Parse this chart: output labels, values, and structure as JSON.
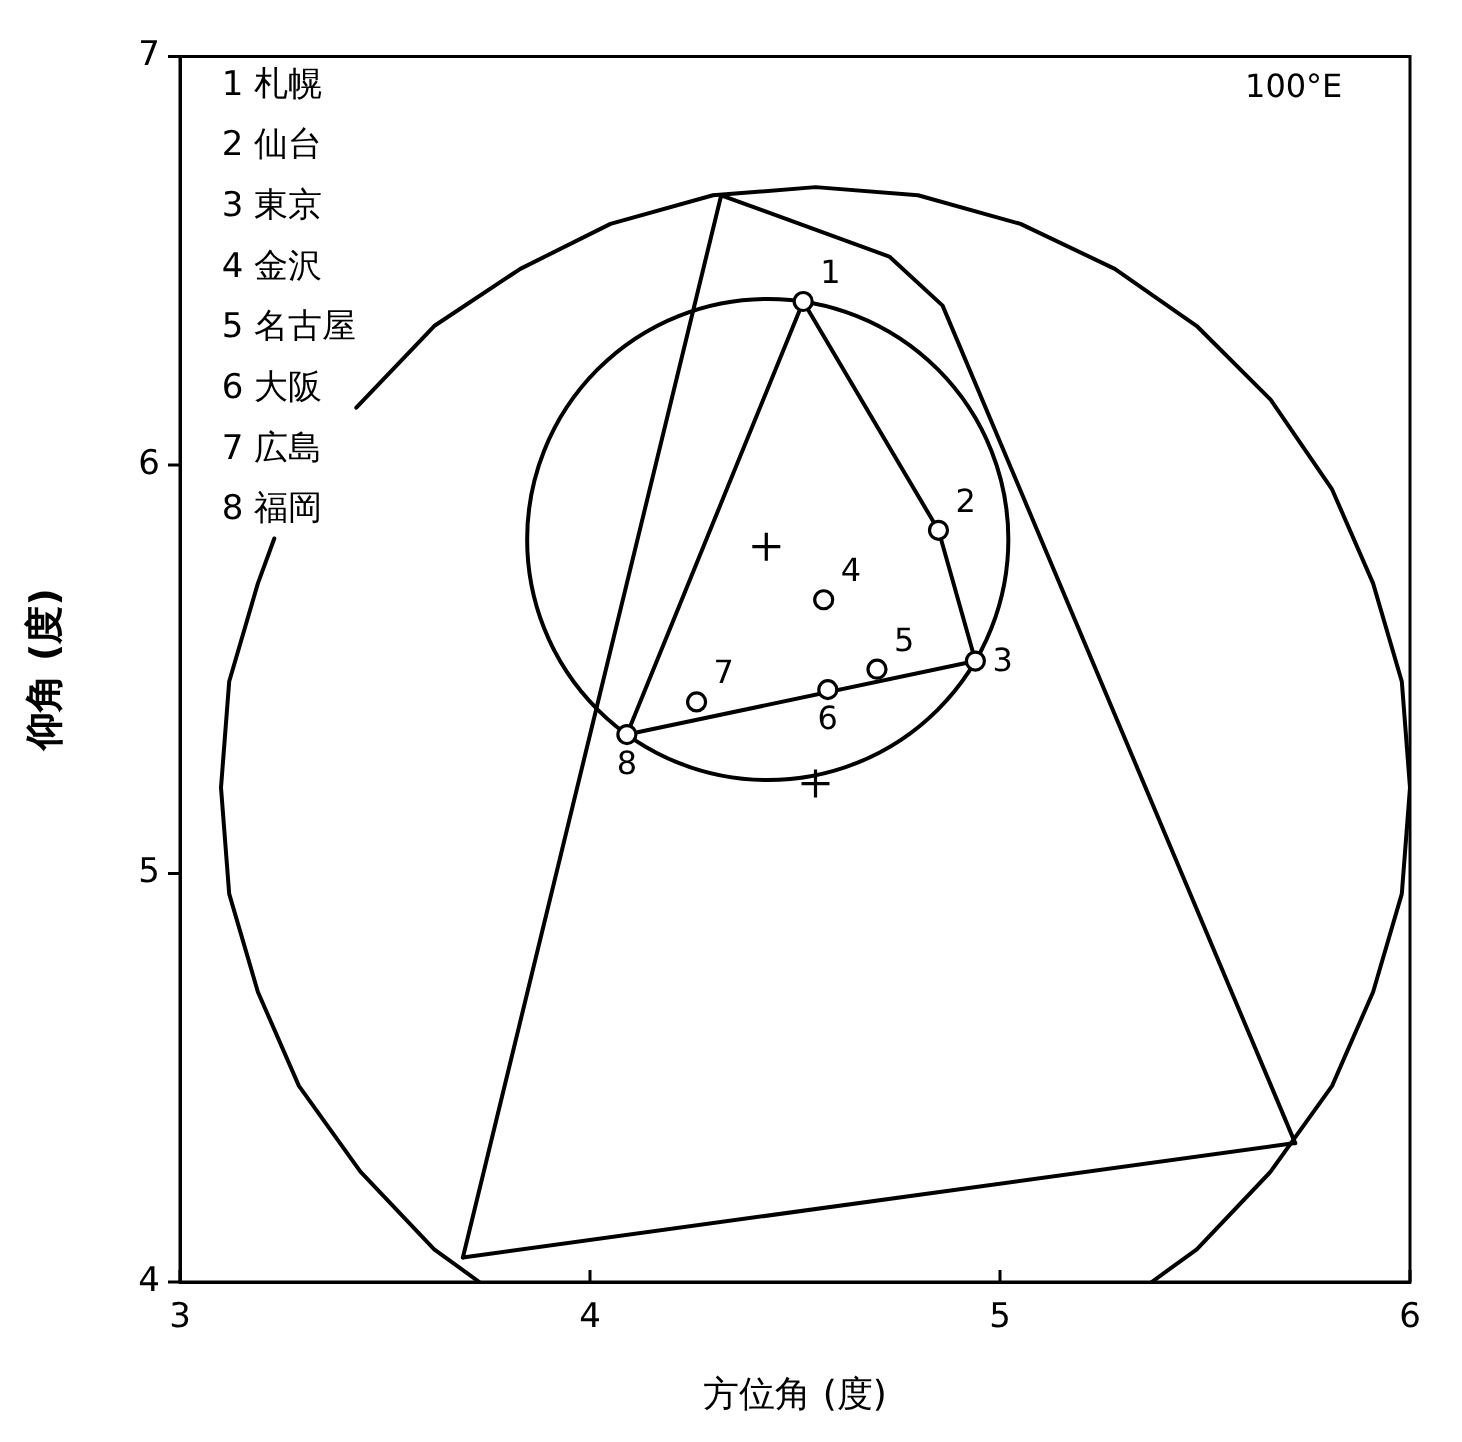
{
  "chart_data": {
    "type": "scatter",
    "title": "100°E",
    "xlabel": "方位角 (度)",
    "ylabel": "仰角 (度)",
    "xlim": [
      3,
      6
    ],
    "ylim": [
      4,
      7
    ],
    "xticks": [
      3,
      4,
      5,
      6
    ],
    "yticks": [
      4,
      5,
      6,
      7
    ],
    "grid": false,
    "legend": false,
    "annotations": [
      "1 札幌",
      "2 仙台",
      "3 東京",
      "4 金沢",
      "5 名古屋",
      "6 大阪",
      "7 広島",
      "8 福岡",
      {
        "text": "1",
        "x": 4.52,
        "y": 6.4
      },
      {
        "text": "2",
        "x": 4.85,
        "y": 5.84
      },
      {
        "text": "3",
        "x": 4.94,
        "y": 5.52
      },
      {
        "text": "4",
        "x": 4.57,
        "y": 5.67
      },
      {
        "text": "5",
        "x": 4.7,
        "y": 5.5
      },
      {
        "text": "6",
        "x": 4.58,
        "y": 5.45
      },
      {
        "text": "7",
        "x": 4.26,
        "y": 5.42
      },
      {
        "text": "8",
        "x": 4.09,
        "y": 5.34
      }
    ],
    "series": [
      {
        "type": "line",
        "marker": "none",
        "color": "#000000",
        "x": [
          3.73,
          3.62,
          3.44,
          3.29,
          3.19,
          3.12,
          3.1,
          3.12,
          3.19,
          3.23,
          3.33,
          3.43,
          3.62,
          3.83,
          4.05,
          4.3,
          4.55,
          4.8,
          5.05,
          5.28,
          5.48,
          5.66,
          5.81,
          5.91,
          5.98,
          6.0,
          5.98,
          5.91,
          5.81,
          5.66,
          5.48,
          5.37
        ],
        "values": [
          4.0,
          4.08,
          4.27,
          4.48,
          4.71,
          4.95,
          5.21,
          5.47,
          5.71,
          5.82,
          null,
          6.14,
          6.34,
          6.48,
          6.59,
          6.66,
          6.68,
          6.66,
          6.59,
          6.48,
          6.34,
          6.16,
          5.94,
          5.71,
          5.47,
          5.21,
          4.95,
          4.71,
          4.48,
          4.27,
          4.08,
          4.0
        ]
      },
      {
        "type": "line",
        "marker": "none",
        "color": "#000000",
        "x": [
          3.69,
          4.32,
          4.73,
          4.86,
          5.72
        ],
        "values": [
          4.06,
          6.66,
          6.51,
          6.39,
          4.34
        ]
      },
      {
        "type": "line",
        "marker": "none",
        "color": "#000000",
        "x": [
          3.69,
          5.72
        ],
        "values": [
          4.06,
          4.34
        ]
      },
      {
        "type": "line",
        "marker": "none",
        "color": "#000000",
        "x": [
          4.09,
          4.52,
          4.85,
          4.94
        ],
        "values": [
          5.34,
          6.4,
          5.84,
          5.52
        ]
      },
      {
        "type": "line",
        "marker": "none",
        "color": "#000000",
        "x": [
          4.09,
          4.94
        ],
        "values": [
          5.34,
          5.52
        ]
      },
      {
        "type": "scatter",
        "marker": "cross",
        "color": "#000000",
        "x": [
          4.43,
          4.55
        ],
        "values": [
          5.8,
          5.22
        ]
      },
      {
        "type": "scatter",
        "marker": "circle",
        "color": "#000000",
        "x": [
          4.52,
          4.85,
          4.94,
          4.57,
          4.7,
          4.58,
          4.26,
          4.09
        ],
        "values": [
          6.4,
          5.84,
          5.52,
          5.67,
          5.5,
          5.45,
          5.42,
          5.34
        ]
      }
    ]
  }
}
